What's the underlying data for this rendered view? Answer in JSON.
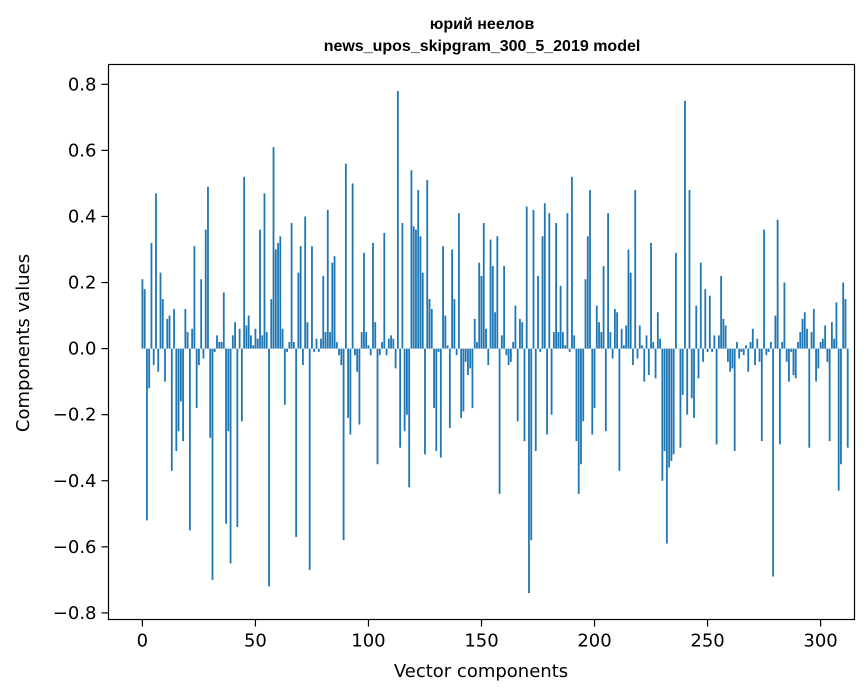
{
  "chart_data": {
    "type": "bar",
    "title_line1": "юрий неелов",
    "title_line2": "news_upos_skipgram_300_5_2019 model",
    "xlabel": "Vector components",
    "ylabel": "Components values",
    "xlim": [
      -15,
      315
    ],
    "ylim": [
      -0.82,
      0.86
    ],
    "xticks": [
      0,
      50,
      100,
      150,
      200,
      250,
      300
    ],
    "xtick_labels": [
      "0",
      "50",
      "100",
      "150",
      "200",
      "250",
      "300"
    ],
    "yticks": [
      -0.8,
      -0.6,
      -0.4,
      -0.2,
      0.0,
      0.2,
      0.4,
      0.6,
      0.8
    ],
    "ytick_labels": [
      "−0.8",
      "−0.6",
      "−0.4",
      "−0.2",
      "0.0",
      "0.2",
      "0.4",
      "0.6",
      "0.8"
    ],
    "bar_color": "#1f77b4",
    "values": [
      0.21,
      0.18,
      -0.52,
      -0.12,
      0.32,
      -0.05,
      0.47,
      -0.07,
      0.23,
      0.15,
      -0.1,
      0.09,
      0.1,
      -0.37,
      0.12,
      -0.31,
      -0.25,
      -0.16,
      -0.28,
      0.12,
      0.05,
      -0.55,
      0.06,
      0.31,
      -0.18,
      -0.05,
      0.21,
      -0.03,
      0.36,
      0.49,
      -0.27,
      -0.7,
      -0.01,
      0.04,
      0.02,
      0.02,
      0.17,
      -0.53,
      -0.25,
      -0.65,
      0.04,
      0.08,
      -0.54,
      0.06,
      -0.22,
      0.52,
      0.07,
      0.1,
      0.04,
      0.01,
      0.06,
      0.03,
      0.36,
      0.04,
      0.47,
      0.05,
      -0.72,
      0.15,
      0.61,
      0.3,
      0.32,
      0.34,
      0.06,
      -0.17,
      -0.01,
      0.02,
      0.38,
      0.02,
      -0.57,
      0.23,
      0.31,
      -0.05,
      0.4,
      0.08,
      -0.67,
      0.31,
      -0.01,
      0.03,
      -0.01,
      0.03,
      0.22,
      0.05,
      0.42,
      0.05,
      0.26,
      0.28,
      0.02,
      -0.02,
      -0.05,
      -0.58,
      0.56,
      -0.21,
      -0.26,
      0.5,
      -0.02,
      -0.07,
      -0.23,
      0.05,
      0.29,
      0.05,
      0.01,
      -0.02,
      0.32,
      0.08,
      -0.35,
      -0.02,
      0.02,
      0.35,
      -0.02,
      0.03,
      0.04,
      0.03,
      -0.06,
      0.78,
      -0.3,
      0.38,
      -0.25,
      -0.2,
      -0.42,
      0.54,
      0.37,
      0.36,
      0.48,
      0.34,
      0.23,
      -0.32,
      0.51,
      0.15,
      0.12,
      -0.18,
      -0.31,
      -0.01,
      -0.33,
      0.31,
      0.1,
      0.01,
      -0.24,
      0.3,
      0.15,
      -0.02,
      0.41,
      -0.21,
      -0.19,
      -0.04,
      -0.08,
      -0.06,
      -0.18,
      0.09,
      0.02,
      0.26,
      0.22,
      0.38,
      0.06,
      -0.05,
      0.33,
      0.25,
      0.11,
      0.34,
      -0.44,
      0.04,
      0.25,
      -0.02,
      -0.05,
      -0.04,
      0.02,
      0.13,
      -0.22,
      0.09,
      0.08,
      -0.28,
      0.43,
      -0.74,
      -0.58,
      0.42,
      -0.31,
      0.22,
      -0.01,
      0.34,
      0.44,
      -0.26,
      0.41,
      -0.2,
      0.05,
      0.38,
      0.05,
      0.19,
      0.05,
      0.01,
      0.41,
      -0.01,
      0.52,
      0.04,
      -0.28,
      -0.44,
      -0.35,
      -0.22,
      0.21,
      0.34,
      0.48,
      -0.26,
      -0.18,
      0.13,
      0.08,
      0.05,
      0.25,
      -0.25,
      0.41,
      0.05,
      -0.03,
      0.12,
      0.11,
      -0.37,
      0.06,
      0.01,
      0.07,
      0.3,
      0.23,
      -0.05,
      0.48,
      -0.03,
      0.07,
      0.01,
      -0.1,
      0.04,
      -0.08,
      0.32,
      0.02,
      -0.09,
      0.11,
      0.03,
      -0.4,
      -0.31,
      -0.59,
      -0.36,
      -0.34,
      -0.32,
      0.29,
      0.0,
      -0.3,
      -0.14,
      0.75,
      -0.2,
      0.48,
      -0.15,
      -0.21,
      0.13,
      -0.09,
      0.26,
      -0.04,
      0.18,
      -0.01,
      0.16,
      -0.01,
      0.04,
      -0.29,
      0.04,
      0.22,
      0.09,
      0.07,
      -0.04,
      -0.07,
      -0.06,
      -0.31,
      0.02,
      -0.03,
      -0.01,
      -0.02,
      0.01,
      -0.07,
      0.02,
      0.06,
      -0.05,
      0.03,
      -0.04,
      -0.28,
      0.36,
      -0.02,
      -0.01,
      0.02,
      -0.69,
      0.1,
      0.39,
      -0.29,
      0.02,
      0.2,
      -0.04,
      -0.1,
      -0.01,
      -0.08,
      -0.09,
      0.02,
      0.05,
      0.09,
      0.11,
      0.06,
      -0.3,
      0.05,
      0.12,
      -0.1,
      -0.06,
      0.02,
      0.03,
      0.07,
      -0.04,
      -0.28,
      0.08,
      0.03,
      0.14,
      -0.43,
      -0.35,
      0.2,
      0.15,
      -0.3
    ]
  }
}
